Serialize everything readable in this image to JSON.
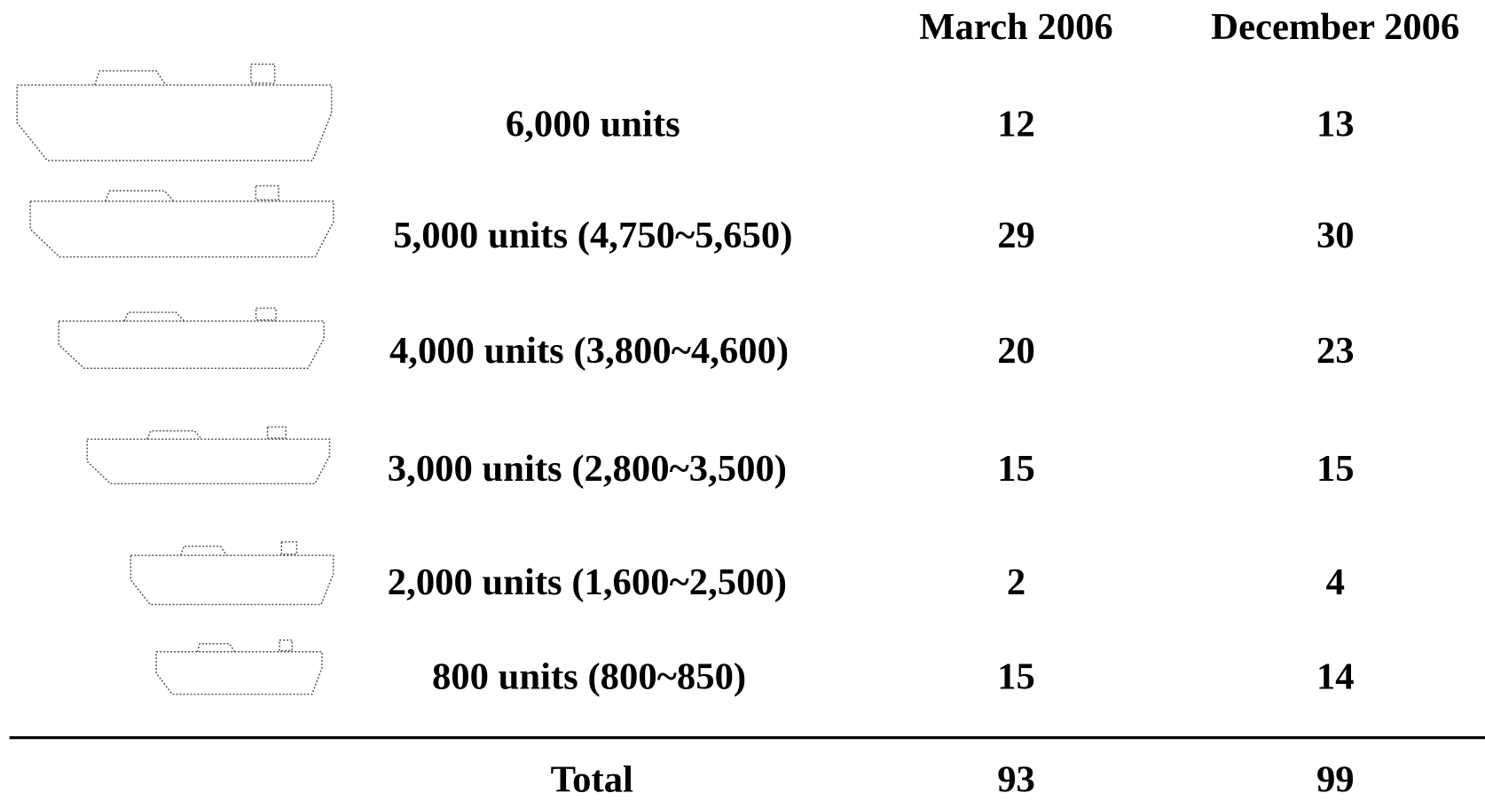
{
  "table": {
    "columns": [
      "March 2006",
      "December 2006"
    ],
    "rows": [
      {
        "label": "6,000 units",
        "values": [
          "12",
          "13"
        ]
      },
      {
        "label": "5,000 units (4,750~5,650)",
        "values": [
          "29",
          "30"
        ]
      },
      {
        "label": "4,000 units (3,800~4,600)",
        "values": [
          "20",
          "23"
        ]
      },
      {
        "label": "3,000 units (2,800~3,500)",
        "values": [
          "15",
          "15"
        ]
      },
      {
        "label": "2,000 units (1,600~2,500)",
        "values": [
          "2",
          "4"
        ]
      },
      {
        "label": "800 units (800~850)",
        "values": [
          "15",
          "14"
        ]
      }
    ],
    "total": {
      "label": "Total",
      "values": [
        "93",
        "99"
      ]
    }
  }
}
